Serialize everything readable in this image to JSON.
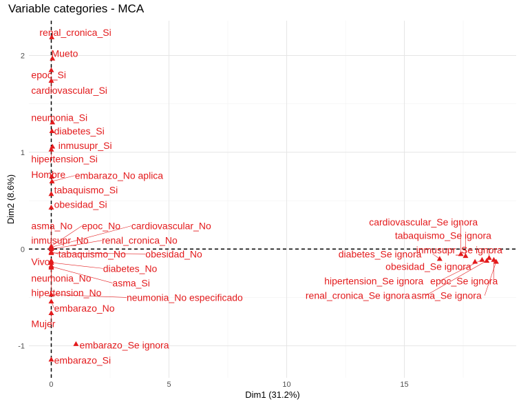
{
  "chart_data": {
    "type": "scatter",
    "title": "Variable categories - MCA",
    "xlabel": "Dim1 (31.2%)",
    "ylabel": "Dim2 (8.6%)",
    "xlim": [
      -0.95,
      19.75
    ],
    "ylim": [
      -1.33,
      2.36
    ],
    "xticks": [
      0,
      5,
      10,
      15
    ],
    "yticks": [
      -1,
      0,
      1,
      2
    ],
    "grid": true,
    "reference_lines": {
      "x": 0,
      "y": 0
    },
    "color": "#e31a1c",
    "points": [
      {
        "label": "renal_cronica_Si",
        "x": 0.02,
        "y": 2.19,
        "lx": -0.5,
        "ly": 2.24
      },
      {
        "label": "Mueto",
        "x": 0.05,
        "y": 1.97,
        "lx": 0.0,
        "ly": 2.02
      },
      {
        "label": "epoc_Si",
        "x": 0.0,
        "y": 1.85,
        "lx": -0.85,
        "ly": 1.8
      },
      {
        "label": "cardiovascular_Si",
        "x": 0.0,
        "y": 1.74,
        "lx": -0.85,
        "ly": 1.64
      },
      {
        "label": "neumonia_Si",
        "x": 0.05,
        "y": 1.31,
        "lx": -0.85,
        "ly": 1.36
      },
      {
        "label": "diabetes_Si",
        "x": 0.03,
        "y": 1.22,
        "lx": 0.12,
        "ly": 1.22
      },
      {
        "label": "inmusupr_Si",
        "x": 0.05,
        "y": 1.06,
        "lx": 0.3,
        "ly": 1.07
      },
      {
        "label": "hipertension_Si",
        "x": 0.0,
        "y": 1.03,
        "lx": -0.85,
        "ly": 0.93
      },
      {
        "label": "Hombre",
        "x": 0.02,
        "y": 0.75,
        "lx": -0.85,
        "ly": 0.77
      },
      {
        "label": "embarazo_No aplica",
        "x": 0.03,
        "y": 0.7,
        "lx": 1.0,
        "ly": 0.76
      },
      {
        "label": "tabaquismo_Si",
        "x": 0.0,
        "y": 0.57,
        "lx": 0.12,
        "ly": 0.61
      },
      {
        "label": "obesidad_Si",
        "x": 0.0,
        "y": 0.43,
        "lx": 0.12,
        "ly": 0.46
      },
      {
        "label": "asma_No",
        "x": 0.0,
        "y": 0.02,
        "lx": -0.85,
        "ly": 0.24
      },
      {
        "label": "epoc_No",
        "x": 0.0,
        "y": 0.03,
        "lx": 1.3,
        "ly": 0.24
      },
      {
        "label": "cardiovascular_No",
        "x": 0.0,
        "y": 0.02,
        "lx": 3.4,
        "ly": 0.24
      },
      {
        "label": "inmusupr_No",
        "x": 0.0,
        "y": 0.01,
        "lx": -0.85,
        "ly": 0.09
      },
      {
        "label": "renal_cronica_No",
        "x": 0.0,
        "y": 0.0,
        "lx": 2.15,
        "ly": 0.09
      },
      {
        "label": "tabaquismo_No",
        "x": 0.0,
        "y": -0.03,
        "lx": 0.3,
        "ly": -0.05
      },
      {
        "label": "obesidad_No",
        "x": 0.0,
        "y": -0.04,
        "lx": 4.0,
        "ly": -0.05
      },
      {
        "label": "Vivo",
        "x": 0.0,
        "y": -0.12,
        "lx": -0.85,
        "ly": -0.13
      },
      {
        "label": "diabetes_No",
        "x": 0.0,
        "y": -0.14,
        "lx": 2.2,
        "ly": -0.2
      },
      {
        "label": "neumonia_No",
        "x": 0.0,
        "y": -0.17,
        "lx": -0.85,
        "ly": -0.3
      },
      {
        "label": "asma_Si",
        "x": 0.0,
        "y": -0.18,
        "lx": 2.6,
        "ly": -0.35
      },
      {
        "label": "hipertension_No",
        "x": 0.0,
        "y": -0.19,
        "lx": -0.85,
        "ly": -0.45
      },
      {
        "label": "neumonia_No especificado",
        "x": 0.0,
        "y": -0.47,
        "lx": 3.2,
        "ly": -0.5
      },
      {
        "label": "embarazo_No",
        "x": 0.0,
        "y": -0.54,
        "lx": 0.12,
        "ly": -0.61
      },
      {
        "label": "Mujer",
        "x": 0.0,
        "y": -0.66,
        "lx": -0.85,
        "ly": -0.77
      },
      {
        "label": "embarazo_Se ignora",
        "x": 1.05,
        "y": -0.98,
        "lx": 1.2,
        "ly": -0.99
      },
      {
        "label": "embarazo_Si",
        "x": 0.0,
        "y": -1.14,
        "lx": 0.12,
        "ly": -1.15
      },
      {
        "label": "cardiovascular_Se ignora",
        "x": 17.4,
        "y": -0.05,
        "lx": 13.5,
        "ly": 0.28
      },
      {
        "label": "tabaquismo_Se ignora",
        "x": 17.6,
        "y": -0.07,
        "lx": 14.6,
        "ly": 0.14
      },
      {
        "label": "inmusupr_Se ignora",
        "x": 18.6,
        "y": -0.09,
        "lx": 15.5,
        "ly": -0.01
      },
      {
        "label": "diabetes_Se ignora",
        "x": 16.5,
        "y": -0.1,
        "lx": 12.2,
        "ly": -0.05
      },
      {
        "label": "obesidad_Se ignora",
        "x": 18.0,
        "y": -0.13,
        "lx": 14.2,
        "ly": -0.18
      },
      {
        "label": "hipertension_Se ignora",
        "x": 18.3,
        "y": -0.11,
        "lx": 11.6,
        "ly": -0.33
      },
      {
        "label": "epoc_Se ignora",
        "x": 18.8,
        "y": -0.11,
        "lx": 16.1,
        "ly": -0.33
      },
      {
        "label": "renal_cronica_Se ignora",
        "x": 18.5,
        "y": -0.12,
        "lx": 10.8,
        "ly": -0.48
      },
      {
        "label": "asma_Se ignora",
        "x": 18.9,
        "y": -0.13,
        "lx": 15.3,
        "ly": -0.48
      }
    ]
  }
}
